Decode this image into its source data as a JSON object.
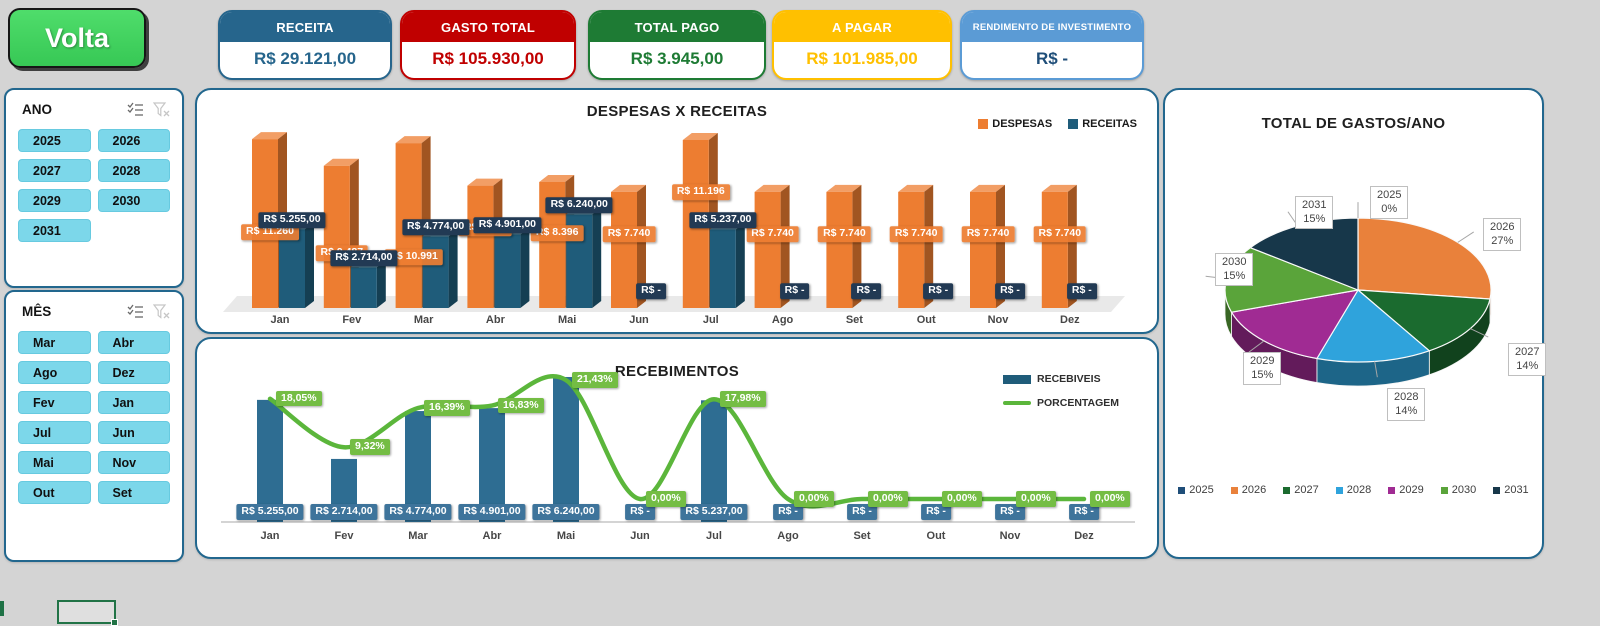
{
  "toolbar": {
    "back_button": "Volta"
  },
  "kpis": [
    {
      "label": "RECEITA",
      "value": "R$ 29.121,00",
      "color": "#26658C"
    },
    {
      "label": "GASTO TOTAL",
      "value": "R$ 105.930,00",
      "color": "#C00000"
    },
    {
      "label": "TOTAL PAGO",
      "value": "R$ 3.945,00",
      "color": "#1E7B34"
    },
    {
      "label": "A PAGAR",
      "value": "R$ 101.985,00",
      "color": "#FFC000"
    },
    {
      "label": "RENDIMENTO DE INVESTIMENTO",
      "value": "R$ -",
      "color": "#5B9BD5",
      "value_color": "#1F4E79"
    }
  ],
  "slicers": {
    "ano": {
      "title": "ANO",
      "items": [
        "2025",
        "2026",
        "2027",
        "2028",
        "2029",
        "2030",
        "2031"
      ]
    },
    "mes": {
      "title": "MÊS",
      "items": [
        "Mar",
        "Abr",
        "Ago",
        "Dez",
        "Fev",
        "Jan",
        "Jul",
        "Jun",
        "Mai",
        "Nov",
        "Out",
        "Set"
      ]
    }
  },
  "chart_data": [
    {
      "type": "bar",
      "title": "DESPESAS X RECEITAS",
      "categories": [
        "Jan",
        "Fev",
        "Mar",
        "Abr",
        "Mai",
        "Jun",
        "Jul",
        "Ago",
        "Set",
        "Out",
        "Nov",
        "Dez"
      ],
      "legend_position": "top-right",
      "ylim": [
        0,
        12000
      ],
      "series": [
        {
          "name": "DESPESAS",
          "color": "#ED7D31",
          "values": [
            11260,
            9487,
            10991,
            8160,
            8396,
            7740,
            11196,
            7740,
            7740,
            7740,
            7740,
            7740
          ],
          "labels": [
            "R$ 11.260",
            "R$ 9.487",
            "R$ 10.991",
            "R$ 8.160",
            "R$ 8.396",
            "R$ 7.740",
            "R$ 11.196",
            "R$ 7.740",
            "R$ 7.740",
            "R$ 7.740",
            "R$ 7.740",
            "R$ 7.740"
          ]
        },
        {
          "name": "RECEITAS",
          "color": "#1F5C7A",
          "values": [
            5255,
            2714,
            4774,
            4901,
            6240,
            0,
            5237,
            0,
            0,
            0,
            0,
            0
          ],
          "labels": [
            "R$ 5.255,00",
            "R$ 2.714,00",
            "R$ 4.774,00",
            "R$ 4.901,00",
            "R$ 6.240,00",
            "R$ -",
            "R$ 5.237,00",
            "R$ -",
            "R$ -",
            "R$ -",
            "R$ -",
            "R$ -"
          ]
        }
      ]
    },
    {
      "type": "bar+line",
      "title": "RECEBIMENTOS",
      "categories": [
        "Jan",
        "Fev",
        "Mar",
        "Abr",
        "Mai",
        "Jun",
        "Jul",
        "Ago",
        "Set",
        "Out",
        "Nov",
        "Dez"
      ],
      "legend_position": "right",
      "series": [
        {
          "name": "RECEBIVEIS",
          "type": "bar",
          "color": "#2E6D92",
          "values": [
            5255,
            2714,
            4774,
            4901,
            6240,
            0,
            5237,
            0,
            0,
            0,
            0,
            0
          ],
          "labels": [
            "R$ 5.255,00",
            "R$ 2.714,00",
            "R$ 4.774,00",
            "R$ 4.901,00",
            "R$ 6.240,00",
            "R$ -",
            "R$ 5.237,00",
            "R$ -",
            "R$ -",
            "R$ -",
            "R$ -",
            "R$ -"
          ]
        },
        {
          "name": "PORCENTAGEM",
          "type": "line",
          "color": "#5BB63B",
          "values": [
            18.05,
            9.32,
            16.39,
            16.83,
            21.43,
            0,
            17.98,
            0,
            0,
            0,
            0,
            0
          ],
          "labels": [
            "18,05%",
            "9,32%",
            "16,39%",
            "16,83%",
            "21,43%",
            "0,00%",
            "17,98%",
            "0,00%",
            "0,00%",
            "0,00%",
            "0,00%",
            "0,00%"
          ]
        }
      ]
    },
    {
      "type": "pie",
      "title": "TOTAL DE GASTOS/ANO",
      "categories": [
        "2025",
        "2026",
        "2027",
        "2028",
        "2029",
        "2030",
        "2031"
      ],
      "values": [
        0,
        27,
        14,
        14,
        15,
        15,
        15
      ],
      "labels": [
        "0%",
        "27%",
        "14%",
        "14%",
        "15%",
        "15%",
        "15%"
      ],
      "colors": [
        "#1F4E79",
        "#E9813B",
        "#1B6B2F",
        "#2FA3DC",
        "#A02B93",
        "#5AA43A",
        "#17374A"
      ],
      "legend_position": "bottom"
    }
  ]
}
